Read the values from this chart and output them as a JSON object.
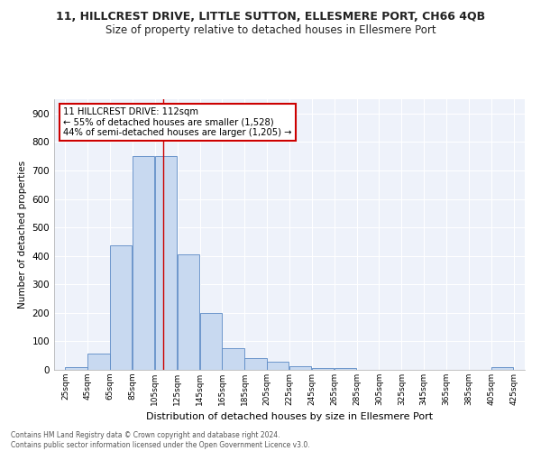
{
  "title": "11, HILLCREST DRIVE, LITTLE SUTTON, ELLESMERE PORT, CH66 4QB",
  "subtitle": "Size of property relative to detached houses in Ellesmere Port",
  "xlabel": "Distribution of detached houses by size in Ellesmere Port",
  "ylabel": "Number of detached properties",
  "bins": [
    25,
    45,
    65,
    85,
    105,
    125,
    145,
    165,
    185,
    205,
    225,
    245,
    265,
    285,
    305,
    325,
    345,
    365,
    385,
    405,
    425
  ],
  "counts": [
    10,
    58,
    438,
    750,
    750,
    405,
    200,
    75,
    42,
    27,
    13,
    5,
    7,
    0,
    0,
    0,
    0,
    0,
    0,
    8
  ],
  "bar_color": "#c8d9f0",
  "bar_edge_color": "#5b8ac5",
  "property_line_x": 112,
  "property_line_color": "#cc0000",
  "annotation_text": "11 HILLCREST DRIVE: 112sqm\n← 55% of detached houses are smaller (1,528)\n44% of semi-detached houses are larger (1,205) →",
  "annotation_box_color": "#ffffff",
  "annotation_box_edge": "#cc0000",
  "ylim": [
    0,
    950
  ],
  "yticks": [
    0,
    100,
    200,
    300,
    400,
    500,
    600,
    700,
    800,
    900
  ],
  "tick_labels": [
    "25sqm",
    "45sqm",
    "65sqm",
    "85sqm",
    "105sqm",
    "125sqm",
    "145sqm",
    "165sqm",
    "185sqm",
    "205sqm",
    "225sqm",
    "245sqm",
    "265sqm",
    "285sqm",
    "305sqm",
    "325sqm",
    "345sqm",
    "365sqm",
    "385sqm",
    "405sqm",
    "425sqm"
  ],
  "footer": "Contains HM Land Registry data © Crown copyright and database right 2024.\nContains public sector information licensed under the Open Government Licence v3.0.",
  "bg_color": "#eef2fa",
  "title_fontsize": 9,
  "subtitle_fontsize": 8.5
}
